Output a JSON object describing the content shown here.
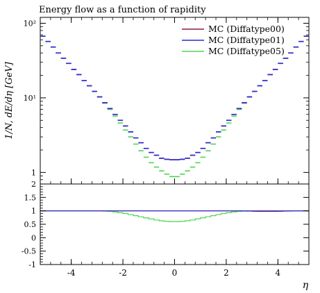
{
  "chart_data": {
    "type": "step",
    "title": "Energy flow as a function of rapidity",
    "xlabel": "η",
    "ylabel": "1/N, dE/dη [GeV]",
    "xlim": [
      -5.2,
      5.2
    ],
    "main_ylim": [
      0.7,
      120
    ],
    "main_yscale": "log",
    "main_ytick_labels": [
      "10²",
      "10¹",
      "1"
    ],
    "ratio_ylim": [
      -1,
      2
    ],
    "ratio_ytick_labels": [
      "2",
      "1.5",
      "1",
      "0.5",
      "0",
      "-0.5",
      "-1"
    ],
    "xtick_labels": [
      "-4",
      "-2",
      "0",
      "2",
      "4"
    ],
    "legend_position": "top-right",
    "x": [
      -5.1,
      -4.9,
      -4.7,
      -4.5,
      -4.3,
      -4.1,
      -3.9,
      -3.7,
      -3.5,
      -3.3,
      -3.1,
      -2.9,
      -2.7,
      -2.5,
      -2.3,
      -2.1,
      -1.9,
      -1.7,
      -1.5,
      -1.3,
      -1.1,
      -0.9,
      -0.7,
      -0.5,
      -0.3,
      -0.1,
      0.1,
      0.3,
      0.5,
      0.7,
      0.9,
      1.1,
      1.3,
      1.5,
      1.7,
      1.9,
      2.1,
      2.3,
      2.5,
      2.7,
      2.9,
      3.1,
      3.3,
      3.5,
      3.7,
      3.9,
      4.1,
      4.3,
      4.5,
      4.7,
      4.9,
      5.1
    ],
    "series": [
      {
        "name": "MC (Diffatype00)",
        "color": "#8b1c3a",
        "values": [
          67,
          57,
          48,
          40,
          34,
          29,
          24,
          20.5,
          17,
          14.5,
          12.2,
          10.3,
          8.6,
          7.2,
          6.0,
          5.0,
          4.2,
          3.5,
          2.9,
          2.5,
          2.1,
          1.85,
          1.7,
          1.55,
          1.5,
          1.48,
          1.48,
          1.5,
          1.55,
          1.7,
          1.85,
          2.1,
          2.5,
          2.9,
          3.5,
          4.2,
          5.0,
          6.0,
          7.2,
          8.6,
          10.3,
          12.2,
          14.5,
          17,
          20.5,
          24,
          29,
          34,
          40,
          48,
          57,
          67
        ],
        "ratio": [
          1,
          1,
          1,
          1,
          1,
          1,
          1,
          1,
          1,
          1,
          1,
          1,
          1,
          1,
          1,
          1,
          1,
          1,
          1,
          1,
          1,
          1,
          1,
          1,
          1,
          1,
          1,
          1,
          1,
          1,
          1,
          1,
          1,
          1,
          1,
          1,
          1,
          1,
          1,
          1,
          1,
          1,
          1,
          1,
          1,
          1,
          1,
          1,
          1,
          1,
          1,
          1
        ]
      },
      {
        "name": "MC (Diffatype01)",
        "color": "#2b2bd6",
        "values": [
          67,
          57,
          48,
          40,
          34,
          29,
          24,
          20.5,
          17,
          14.5,
          12.2,
          10.3,
          8.6,
          7.2,
          6.0,
          5.0,
          4.2,
          3.5,
          2.9,
          2.5,
          2.1,
          1.85,
          1.7,
          1.55,
          1.5,
          1.48,
          1.48,
          1.5,
          1.55,
          1.7,
          1.85,
          2.1,
          2.5,
          2.9,
          3.5,
          4.2,
          5.0,
          6.0,
          7.2,
          8.6,
          10.3,
          12.2,
          14.5,
          17,
          20.5,
          24,
          29,
          34,
          40,
          48,
          57,
          67
        ],
        "ratio": [
          1,
          1,
          1,
          1,
          1,
          1,
          1,
          1,
          1,
          1,
          1,
          1,
          1,
          1,
          1,
          1,
          1,
          1,
          1,
          1,
          1,
          1,
          1,
          1,
          1,
          1,
          1,
          1,
          1,
          1,
          1,
          1,
          1,
          1,
          1,
          1,
          1,
          1,
          1,
          0.995,
          0.99,
          0.985,
          0.98,
          0.98,
          0.98,
          0.98,
          0.985,
          0.99,
          0.995,
          1,
          1,
          1
        ]
      },
      {
        "name": "MC (Diffatype05)",
        "color": "#4cd64c",
        "values": [
          67,
          57,
          48,
          40,
          34,
          29,
          24,
          20.5,
          17,
          14.5,
          12.2,
          10.3,
          8.5,
          7.0,
          5.7,
          4.6,
          3.7,
          3.0,
          2.4,
          1.95,
          1.6,
          1.35,
          1.18,
          1.05,
          0.95,
          0.88,
          0.88,
          0.95,
          1.05,
          1.18,
          1.35,
          1.6,
          1.95,
          2.4,
          3.0,
          3.7,
          4.6,
          5.7,
          7.0,
          8.5,
          10.3,
          12.2,
          14.5,
          17,
          20.5,
          24,
          29,
          34,
          40,
          48,
          57,
          67
        ],
        "ratio": [
          1,
          1,
          1,
          1,
          1,
          1,
          1,
          1,
          1,
          1,
          1,
          1,
          0.99,
          0.98,
          0.96,
          0.93,
          0.9,
          0.86,
          0.82,
          0.78,
          0.74,
          0.7,
          0.66,
          0.63,
          0.61,
          0.6,
          0.6,
          0.61,
          0.63,
          0.66,
          0.7,
          0.74,
          0.78,
          0.82,
          0.86,
          0.9,
          0.93,
          0.96,
          0.98,
          0.99,
          1,
          1,
          1,
          1,
          1,
          1,
          1,
          1,
          1,
          1,
          1,
          1
        ]
      }
    ]
  }
}
